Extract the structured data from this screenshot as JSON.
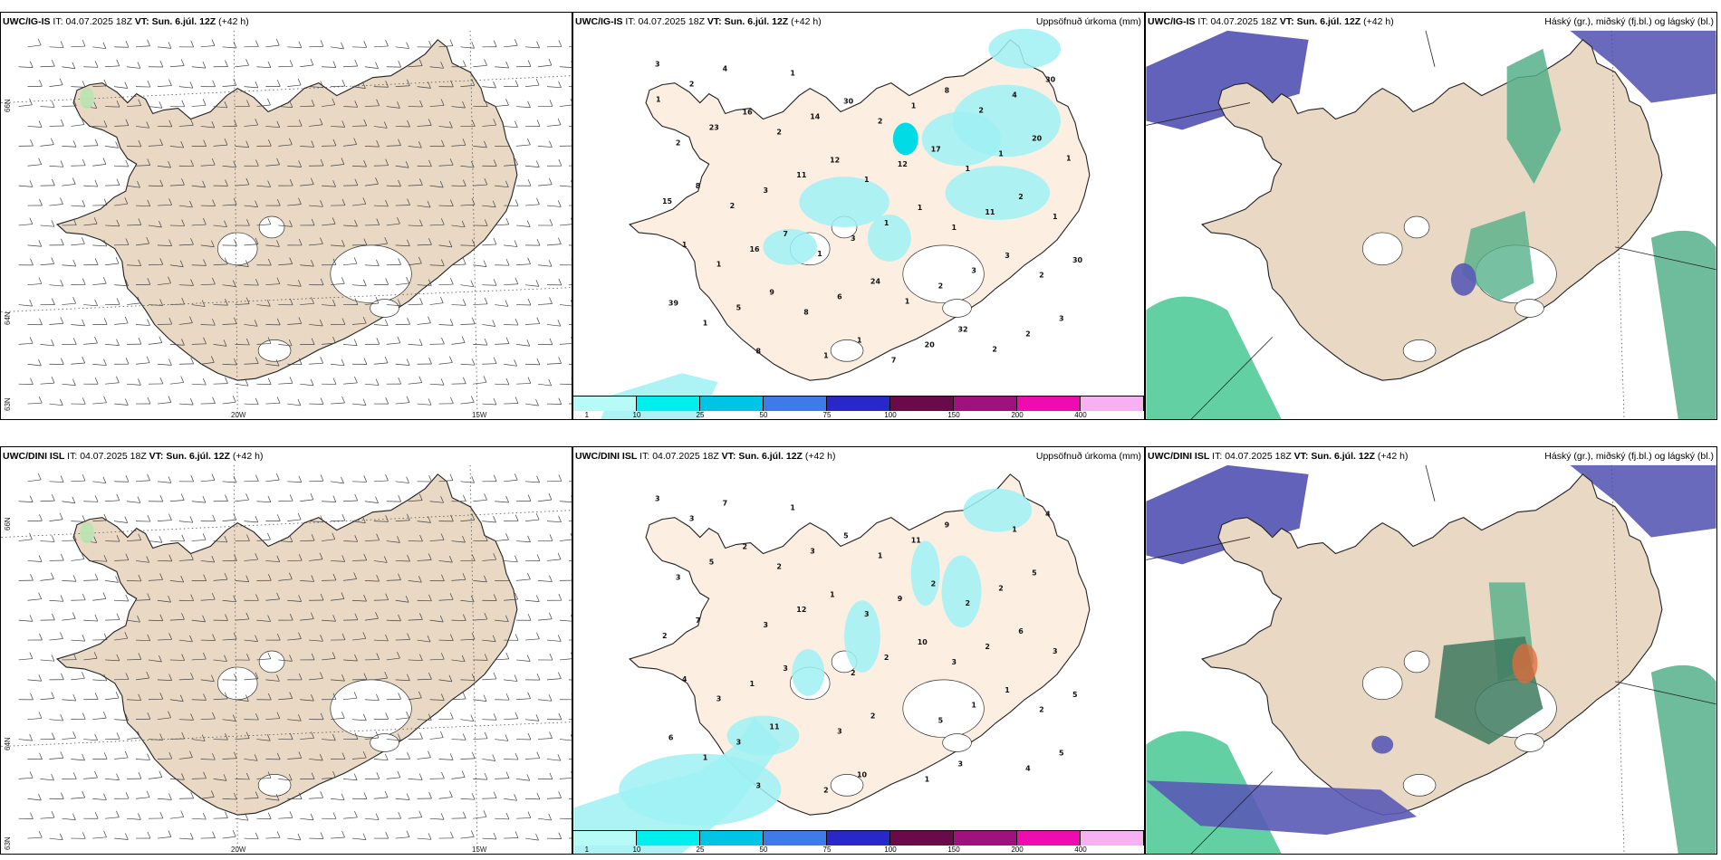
{
  "rows": [
    {
      "model": "UWC/IG-IS",
      "it_label": "IT:",
      "it_value": "04.07.2025 18Z",
      "vt_label": "VT:",
      "vt_value": "Sun. 6.júl. 12Z",
      "lead": "(+42 h)",
      "precip_labels": [
        "3",
        "16",
        "12",
        "1",
        "3",
        "39",
        "8",
        "30",
        "17",
        "2",
        "1",
        "9",
        "1",
        "8",
        "20",
        "8",
        "7",
        "24",
        "32",
        "30",
        "23",
        "11",
        "1",
        "3",
        "3",
        "4",
        "14",
        "12",
        "11",
        "30",
        "5",
        "1",
        "1",
        "1",
        "15",
        "16",
        "6",
        "20",
        "4",
        "2",
        "3",
        "3",
        "2",
        "2",
        "2",
        "2",
        "1",
        "1",
        "2",
        "1",
        "1",
        "2",
        "1",
        "1",
        "1",
        "8",
        "7",
        "2",
        "1",
        "2",
        "1",
        "1",
        "2",
        "1"
      ]
    },
    {
      "model": "UWC/DINI ISL",
      "it_label": "IT:",
      "it_value": "04.07.2025 18Z",
      "vt_label": "VT:",
      "vt_value": "Sun. 6.júl. 12Z",
      "lead": "(+42 h)",
      "precip_labels": [
        "3",
        "2",
        "1",
        "10",
        "1",
        "6",
        "3",
        "5",
        "2",
        "6",
        "4",
        "11",
        "10",
        "9",
        "5",
        "7",
        "3",
        "2",
        "3",
        "4",
        "5",
        "12",
        "2",
        "1",
        "5",
        "7",
        "3",
        "9",
        "2",
        "5",
        "3",
        "2",
        "11",
        "2",
        "2",
        "1",
        "3",
        "1",
        "1",
        "3",
        "3",
        "2",
        "5",
        "4",
        "3",
        "2",
        "3",
        "3",
        "2",
        "1",
        "1",
        "1",
        "2",
        "3",
        "3"
      ]
    }
  ],
  "precip_title": "Uppsöfnuð úrkoma (mm)",
  "cloud_title": "Háský (gr.), miðský (fj.bl.) og lágský (bl.)",
  "wind_axes": {
    "lat66": "66N",
    "lat64": "64N",
    "lat63": "63N",
    "lon20": "20W",
    "lon15": "15W"
  },
  "precip_legend": {
    "ticks": [
      "1",
      "10",
      "25",
      "50",
      "75",
      "100",
      "150",
      "200",
      "400"
    ],
    "colors": [
      "#b7fbf7",
      "#00eeee",
      "#00c4e6",
      "#3f7be8",
      "#2828c8",
      "#6a0a4a",
      "#a0107e",
      "#ee0cb0",
      "#f7b0f0"
    ]
  },
  "colors": {
    "land_wind": "#e8d8c4",
    "land_precip": "#fcefe2",
    "land_cloud": "#e8d8c4",
    "high_cloud": "#55b08a",
    "mid_cloud": "#5a5ab6",
    "low_cloud_edge": "#2ec084"
  }
}
